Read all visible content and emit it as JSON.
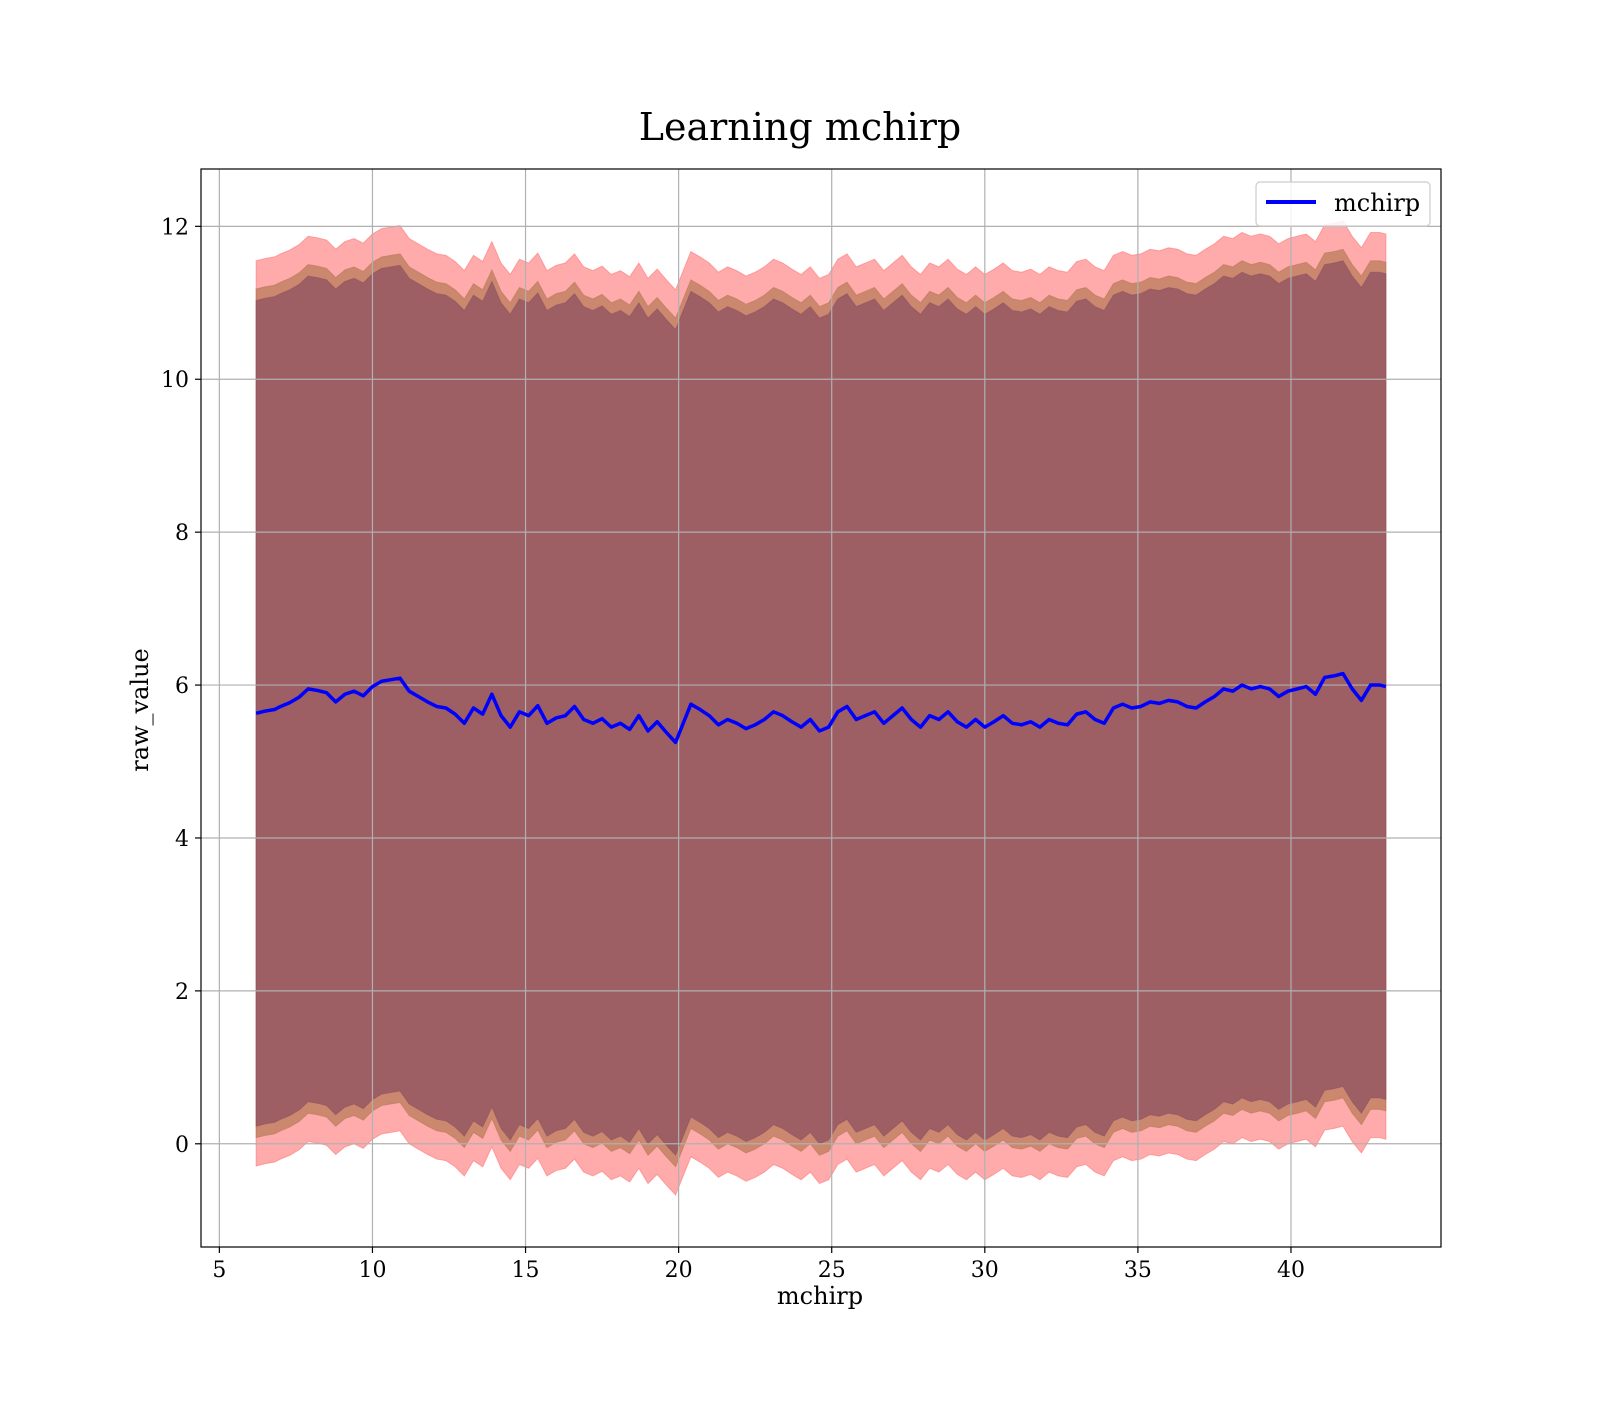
{
  "chart_data": {
    "type": "line",
    "title": "Learning mchirp",
    "xlabel": "mchirp",
    "ylabel": "raw_value",
    "xlim": [
      4.4,
      44.9
    ],
    "ylim": [
      -1.35,
      12.75
    ],
    "xticks": [
      5,
      10,
      15,
      20,
      25,
      30,
      35,
      40
    ],
    "xtick_labels": [
      "5",
      "10",
      "15",
      "20",
      "25",
      "30",
      "35",
      "40"
    ],
    "yticks": [
      0,
      2,
      4,
      6,
      8,
      10,
      12
    ],
    "ytick_labels": [
      "0",
      "2",
      "4",
      "6",
      "8",
      "10",
      "12"
    ],
    "grid": true,
    "legend_position": "top-right",
    "series": [
      {
        "name": "mchirp",
        "color": "#0000ff",
        "x": [
          6.2,
          6.5,
          6.8,
          7.0,
          7.3,
          7.6,
          7.9,
          8.2,
          8.5,
          8.8,
          9.1,
          9.4,
          9.7,
          10.0,
          10.3,
          10.6,
          10.9,
          11.2,
          11.5,
          11.8,
          12.1,
          12.4,
          12.7,
          13.0,
          13.3,
          13.6,
          13.9,
          14.2,
          14.5,
          14.8,
          15.1,
          15.4,
          15.7,
          16.0,
          16.3,
          16.6,
          16.9,
          17.2,
          17.5,
          17.8,
          18.1,
          18.4,
          18.7,
          19.0,
          19.3,
          19.6,
          19.9,
          20.1,
          20.4,
          20.7,
          21.0,
          21.3,
          21.6,
          21.9,
          22.2,
          22.5,
          22.8,
          23.1,
          23.4,
          23.7,
          24.0,
          24.3,
          24.6,
          24.9,
          25.2,
          25.5,
          25.8,
          26.1,
          26.4,
          26.7,
          27.0,
          27.3,
          27.6,
          27.9,
          28.2,
          28.5,
          28.8,
          29.1,
          29.4,
          29.7,
          30.0,
          30.3,
          30.6,
          30.9,
          31.2,
          31.5,
          31.8,
          32.1,
          32.4,
          32.7,
          33.0,
          33.3,
          33.6,
          33.9,
          34.2,
          34.5,
          34.8,
          35.1,
          35.4,
          35.7,
          36.0,
          36.3,
          36.6,
          36.9,
          37.2,
          37.5,
          37.8,
          38.1,
          38.4,
          38.7,
          39.0,
          39.3,
          39.6,
          39.9,
          40.2,
          40.5,
          40.8,
          41.1,
          41.4,
          41.7,
          42.0,
          42.3,
          42.6,
          42.9,
          43.1
        ],
        "y": [
          5.63,
          5.66,
          5.68,
          5.72,
          5.77,
          5.84,
          5.95,
          5.93,
          5.9,
          5.78,
          5.88,
          5.92,
          5.86,
          5.98,
          6.05,
          6.07,
          6.09,
          5.92,
          5.85,
          5.78,
          5.72,
          5.7,
          5.62,
          5.5,
          5.7,
          5.62,
          5.88,
          5.6,
          5.45,
          5.65,
          5.6,
          5.73,
          5.5,
          5.57,
          5.6,
          5.72,
          5.55,
          5.5,
          5.56,
          5.45,
          5.5,
          5.42,
          5.6,
          5.4,
          5.52,
          5.38,
          5.25,
          5.45,
          5.75,
          5.68,
          5.6,
          5.48,
          5.55,
          5.5,
          5.43,
          5.48,
          5.55,
          5.65,
          5.6,
          5.52,
          5.45,
          5.55,
          5.4,
          5.45,
          5.65,
          5.72,
          5.55,
          5.6,
          5.65,
          5.5,
          5.6,
          5.7,
          5.55,
          5.45,
          5.6,
          5.55,
          5.65,
          5.52,
          5.45,
          5.55,
          5.45,
          5.52,
          5.6,
          5.5,
          5.48,
          5.52,
          5.45,
          5.55,
          5.5,
          5.48,
          5.62,
          5.65,
          5.55,
          5.5,
          5.7,
          5.75,
          5.7,
          5.72,
          5.78,
          5.76,
          5.8,
          5.78,
          5.72,
          5.7,
          5.78,
          5.85,
          5.95,
          5.92,
          6.0,
          5.95,
          5.98,
          5.95,
          5.85,
          5.92,
          5.95,
          5.98,
          5.88,
          6.1,
          6.12,
          6.15,
          5.95,
          5.8,
          6.0,
          6.0,
          5.98
        ],
        "upper_bands": [
          {
            "offset": 5.92,
            "color": "#ff0000",
            "opacity": 0.33
          },
          {
            "offset": 5.55,
            "color": "#b8860b",
            "opacity": 0.28
          },
          {
            "offset": 5.4,
            "color": "#4b0010",
            "opacity": 0.3
          }
        ]
      }
    ],
    "bands": [
      {
        "lower_offset": 5.92,
        "upper_offset": 5.92,
        "color": "#ff6666",
        "opacity": 0.55
      },
      {
        "lower_offset": 5.55,
        "upper_offset": 5.55,
        "color": "#b0744f",
        "opacity": 0.65
      },
      {
        "lower_offset": 5.4,
        "upper_offset": 5.4,
        "color": "#8a4d60",
        "opacity": 0.72
      }
    ]
  }
}
